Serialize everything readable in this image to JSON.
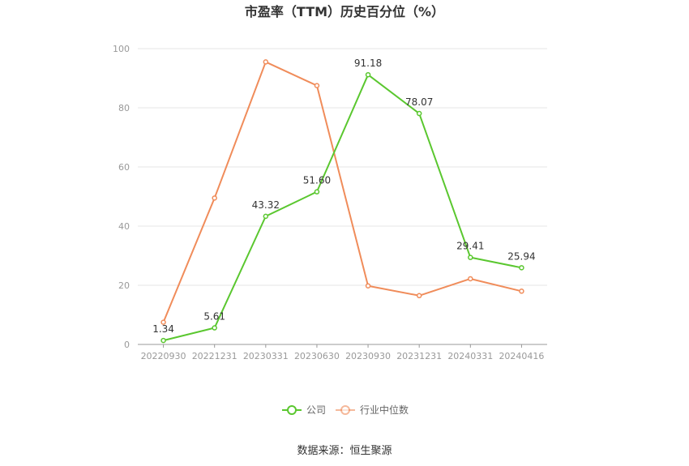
{
  "chart_data": {
    "type": "line",
    "title": "市盈率（TTM）历史百分位（%）",
    "x": [
      "20220930",
      "20221231",
      "20230331",
      "20230630",
      "20230930",
      "20231231",
      "20240331",
      "20240416"
    ],
    "ylim": [
      0,
      100
    ],
    "yticks": [
      0,
      20,
      40,
      60,
      80,
      100
    ],
    "grid": true,
    "legend_position": "bottom",
    "series": [
      {
        "name": "公司",
        "color": "#5ac72f",
        "values": [
          1.34,
          5.61,
          43.32,
          51.6,
          91.18,
          78.07,
          29.41,
          25.94
        ],
        "labels": [
          "1.34",
          "5.61",
          "43.32",
          "51.60",
          "91.18",
          "78.07",
          "29.41",
          "25.94"
        ]
      },
      {
        "name": "行业中位数",
        "color": "#f08c5a",
        "values": [
          7.5,
          49.5,
          95.5,
          87.5,
          19.8,
          16.5,
          22.2,
          18.0
        ]
      }
    ]
  },
  "source": "数据来源：恒生聚源"
}
